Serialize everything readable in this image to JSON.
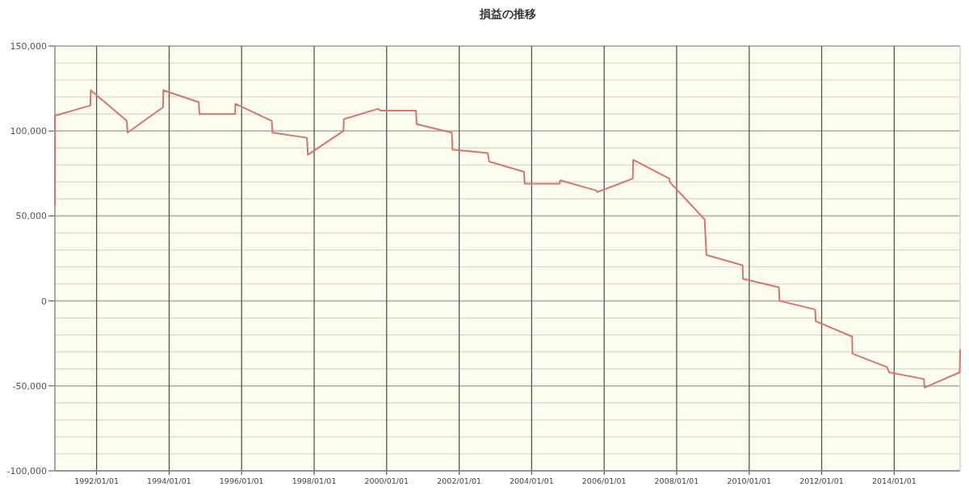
{
  "chart_data": {
    "type": "line",
    "title": "損益の推移",
    "x": [
      "1990-11-07",
      "1990-11-08",
      "1991-10-30",
      "1991-11-03",
      "1992-10-30",
      "1992-11-08",
      "1993-11-01",
      "1993-11-03",
      "1994-10-26",
      "1994-11-03",
      "1995-10-27",
      "1995-10-31",
      "1996-10-30",
      "1996-11-08",
      "1997-10-20",
      "1997-10-30",
      "1998-10-23",
      "1998-10-27",
      "1999-10-04",
      "1999-11-01",
      "2000-10-23",
      "2000-10-29",
      "2001-10-19",
      "2001-10-25",
      "2002-10-16",
      "2002-10-30",
      "2003-10-16",
      "2003-10-23",
      "2004-10-09",
      "2004-10-16",
      "2005-10-12",
      "2005-10-23",
      "2006-10-16",
      "2006-10-20",
      "2007-10-19",
      "2007-10-23",
      "2008-10-09",
      "2008-10-27",
      "2009-10-27",
      "2009-10-30",
      "2010-10-27",
      "2010-11-03",
      "2011-10-27",
      "2011-11-03",
      "2012-11-03",
      "2012-11-06",
      "2013-10-20",
      "2013-11-10",
      "2014-10-27",
      "2014-11-03",
      "2015-10-23",
      "2015-10-27"
    ],
    "values": [
      57000,
      109000,
      115000,
      124000,
      106000,
      99000,
      114000,
      124000,
      117000,
      110000,
      110000,
      116000,
      106000,
      99000,
      96000,
      86000,
      100000,
      107000,
      113000,
      112000,
      112000,
      104000,
      99000,
      89000,
      87000,
      82000,
      76000,
      69000,
      69000,
      71000,
      65000,
      64000,
      72000,
      83000,
      72000,
      70000,
      48000,
      27000,
      21000,
      13000,
      8000,
      0,
      -5000,
      -12000,
      -21000,
      -31000,
      -39000,
      -42000,
      -46000,
      -51000,
      -42000,
      -29000
    ],
    "color": "#d9736b",
    "xlim": [
      "1990-11-07",
      "2015-10-27"
    ],
    "ylim": [
      -100000,
      150000
    ],
    "xticks": [
      {
        "value": "1992-01-01",
        "label": "1992/01/01"
      },
      {
        "value": "1994-01-01",
        "label": "1994/01/01"
      },
      {
        "value": "1996-01-01",
        "label": "1996/01/01"
      },
      {
        "value": "1998-01-01",
        "label": "1998/01/01"
      },
      {
        "value": "2000-01-01",
        "label": "2000/01/01"
      },
      {
        "value": "2002-01-01",
        "label": "2002/01/01"
      },
      {
        "value": "2004-01-01",
        "label": "2004/01/01"
      },
      {
        "value": "2006-01-01",
        "label": "2006/01/01"
      },
      {
        "value": "2008-01-01",
        "label": "2008/01/01"
      },
      {
        "value": "2010-01-01",
        "label": "2010/01/01"
      },
      {
        "value": "2012-01-01",
        "label": "2012/01/01"
      },
      {
        "value": "2014-01-01",
        "label": "2014/01/01"
      }
    ],
    "yticks": [
      {
        "value": -100000,
        "label": "-100,000"
      },
      {
        "value": -90000,
        "label": null
      },
      {
        "value": -80000,
        "label": null
      },
      {
        "value": -70000,
        "label": null
      },
      {
        "value": -60000,
        "label": null
      },
      {
        "value": -50000,
        "label": "-50,000"
      },
      {
        "value": -40000,
        "label": null
      },
      {
        "value": -30000,
        "label": null
      },
      {
        "value": -20000,
        "label": null
      },
      {
        "value": -10000,
        "label": null
      },
      {
        "value": 0,
        "label": "0"
      },
      {
        "value": 10000,
        "label": null
      },
      {
        "value": 20000,
        "label": null
      },
      {
        "value": 30000,
        "label": null
      },
      {
        "value": 40000,
        "label": null
      },
      {
        "value": 50000,
        "label": "50,000"
      },
      {
        "value": 60000,
        "label": null
      },
      {
        "value": 70000,
        "label": null
      },
      {
        "value": 80000,
        "label": null
      },
      {
        "value": 90000,
        "label": null
      },
      {
        "value": 100000,
        "label": "100,000"
      },
      {
        "value": 110000,
        "label": null
      },
      {
        "value": 120000,
        "label": null
      },
      {
        "value": 130000,
        "label": null
      },
      {
        "value": 140000,
        "label": null
      },
      {
        "value": 150000,
        "label": "150,000"
      }
    ],
    "grid": true
  }
}
